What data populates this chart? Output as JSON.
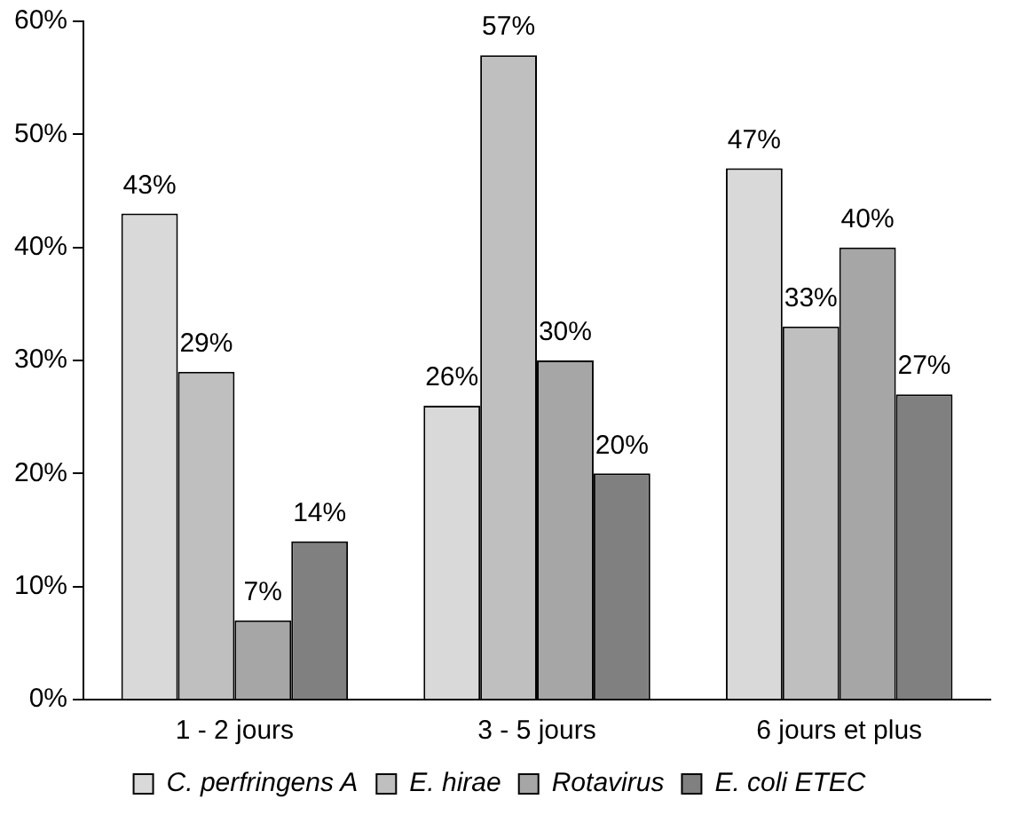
{
  "chart_data": {
    "type": "bar",
    "categories": [
      "1 - 2 jours",
      "3 - 5 jours",
      "6 jours et plus"
    ],
    "series": [
      {
        "name": "C. perfringens A",
        "color": "#d9d9d9",
        "values": [
          43,
          26,
          47
        ],
        "value_labels": [
          "43%",
          "26%",
          "47%"
        ]
      },
      {
        "name": "E. hirae",
        "color": "#bfbfbf",
        "values": [
          29,
          57,
          33
        ],
        "value_labels": [
          "29%",
          "57%",
          "33%"
        ]
      },
      {
        "name": "Rotavirus",
        "color": "#a6a6a6",
        "values": [
          7,
          30,
          40
        ],
        "value_labels": [
          "7%",
          "30%",
          "40%"
        ]
      },
      {
        "name": "E. coli ETEC",
        "color": "#808080",
        "values": [
          14,
          20,
          27
        ],
        "value_labels": [
          "14%",
          "20%",
          "27%"
        ]
      }
    ],
    "ylim": [
      0,
      60
    ],
    "yticks": [
      {
        "value": 0,
        "label": "0%"
      },
      {
        "value": 10,
        "label": "10%"
      },
      {
        "value": 20,
        "label": "20%"
      },
      {
        "value": 30,
        "label": "30%"
      },
      {
        "value": 40,
        "label": "40%"
      },
      {
        "value": 50,
        "label": "50%"
      },
      {
        "value": 60,
        "label": "60%"
      }
    ],
    "grid": false,
    "legend": "bottom"
  }
}
